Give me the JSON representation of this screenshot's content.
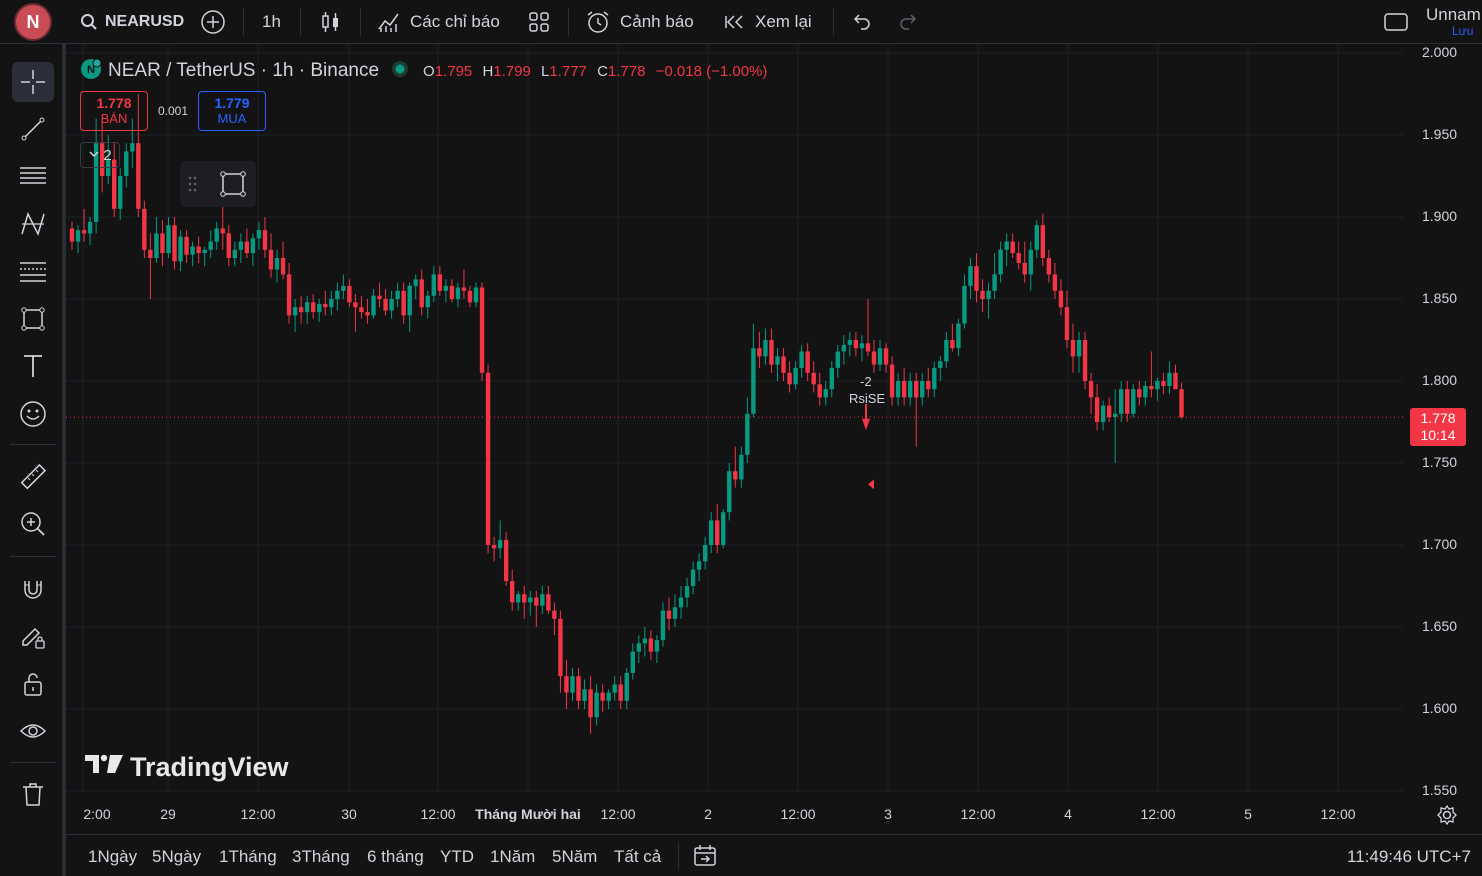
{
  "topbar": {
    "logo_letter": "N",
    "symbol": "NEARUSD",
    "interval": "1h",
    "indicators_label": "Các chỉ báo",
    "alerts_label": "Cảnh báo",
    "replay_label": "Xem lại",
    "layout_name": "Unnam",
    "save_label": "Lưu"
  },
  "legend": {
    "title": "NEAR / TetherUS · 1h · Binance",
    "o_label": "O",
    "o": "1.795",
    "h_label": "H",
    "h": "1.799",
    "l_label": "L",
    "l": "1.777",
    "c_label": "C",
    "c": "1.778",
    "change": "−0.018 (−1.00%)"
  },
  "trade": {
    "sell_price": "1.778",
    "sell_label": "BÁN",
    "spread": "0.001",
    "buy_price": "1.779",
    "buy_label": "MUA",
    "collapse_count": "2"
  },
  "price_axis": {
    "ticks": [
      "2.000",
      "1.950",
      "1.900",
      "1.850",
      "1.800",
      "1.750",
      "1.700",
      "1.650",
      "1.600",
      "1.550"
    ],
    "last_price": "1.778",
    "countdown": "10:14"
  },
  "time_axis": {
    "ticks": [
      "2:00",
      "29",
      "12:00",
      "30",
      "12:00",
      "Tháng Mười hai",
      "12:00",
      "2",
      "12:00",
      "3",
      "12:00",
      "4",
      "12:00",
      "5",
      "12:00"
    ]
  },
  "marker": {
    "count": "-2",
    "label": "RsiSE"
  },
  "watermark": "TradingView",
  "bottom": {
    "ranges": [
      "1Ngày",
      "5Ngày",
      "1Tháng",
      "3Tháng",
      "6 tháng",
      "YTD",
      "1Năm",
      "5Năm",
      "Tất cả"
    ],
    "clock": "11:49:46 UTC+7"
  },
  "colors": {
    "up": "#089981",
    "down": "#f23645",
    "background": "#131313",
    "buy": "#2962ff"
  },
  "chart_data": {
    "type": "candlestick",
    "symbol": "NEAR / TetherUS",
    "interval": "1h",
    "exchange": "Binance",
    "ylim": [
      1.55,
      2.0
    ],
    "last": 1.778,
    "candles": [
      [
        1.893,
        1.897,
        1.88,
        1.885
      ],
      [
        1.885,
        1.895,
        1.878,
        1.892
      ],
      [
        1.892,
        1.905,
        1.885,
        1.89
      ],
      [
        1.89,
        1.9,
        1.883,
        1.897
      ],
      [
        1.897,
        1.96,
        1.89,
        1.945
      ],
      [
        1.945,
        1.96,
        1.915,
        1.925
      ],
      [
        1.925,
        1.95,
        1.92,
        1.935
      ],
      [
        1.935,
        1.945,
        1.9,
        1.905
      ],
      [
        1.905,
        1.93,
        1.898,
        1.925
      ],
      [
        1.925,
        1.945,
        1.918,
        1.94
      ],
      [
        1.94,
        1.96,
        1.93,
        1.945
      ],
      [
        1.945,
        1.975,
        1.9,
        1.905
      ],
      [
        1.905,
        1.91,
        1.875,
        1.88
      ],
      [
        1.88,
        1.89,
        1.85,
        1.875
      ],
      [
        1.875,
        1.9,
        1.872,
        1.89
      ],
      [
        1.89,
        1.898,
        1.87,
        1.878
      ],
      [
        1.878,
        1.9,
        1.875,
        1.895
      ],
      [
        1.895,
        1.9,
        1.868,
        1.873
      ],
      [
        1.873,
        1.892,
        1.867,
        1.888
      ],
      [
        1.888,
        1.892,
        1.872,
        1.877
      ],
      [
        1.877,
        1.885,
        1.87,
        1.882
      ],
      [
        1.882,
        1.888,
        1.872,
        1.878
      ],
      [
        1.878,
        1.882,
        1.87,
        1.88
      ],
      [
        1.88,
        1.892,
        1.875,
        1.885
      ],
      [
        1.885,
        1.897,
        1.88,
        1.893
      ],
      [
        1.893,
        1.91,
        1.88,
        1.89
      ],
      [
        1.89,
        1.895,
        1.87,
        1.875
      ],
      [
        1.875,
        1.885,
        1.87,
        1.88
      ],
      [
        1.88,
        1.89,
        1.872,
        1.885
      ],
      [
        1.885,
        1.893,
        1.875,
        1.878
      ],
      [
        1.878,
        1.89,
        1.87,
        1.887
      ],
      [
        1.887,
        1.897,
        1.88,
        1.892
      ],
      [
        1.892,
        1.9,
        1.875,
        1.88
      ],
      [
        1.88,
        1.89,
        1.863,
        1.868
      ],
      [
        1.868,
        1.88,
        1.86,
        1.875
      ],
      [
        1.875,
        1.885,
        1.862,
        1.865
      ],
      [
        1.865,
        1.872,
        1.835,
        1.84
      ],
      [
        1.84,
        1.85,
        1.83,
        1.845
      ],
      [
        1.845,
        1.852,
        1.835,
        1.842
      ],
      [
        1.842,
        1.852,
        1.835,
        1.848
      ],
      [
        1.848,
        1.853,
        1.838,
        1.842
      ],
      [
        1.842,
        1.85,
        1.836,
        1.847
      ],
      [
        1.847,
        1.855,
        1.84,
        1.845
      ],
      [
        1.845,
        1.855,
        1.84,
        1.85
      ],
      [
        1.85,
        1.86,
        1.843,
        1.855
      ],
      [
        1.855,
        1.865,
        1.85,
        1.858
      ],
      [
        1.858,
        1.862,
        1.845,
        1.848
      ],
      [
        1.848,
        1.853,
        1.83,
        1.845
      ],
      [
        1.845,
        1.852,
        1.838,
        1.842
      ],
      [
        1.842,
        1.85,
        1.835,
        1.84
      ],
      [
        1.84,
        1.856,
        1.838,
        1.852
      ],
      [
        1.852,
        1.86,
        1.845,
        1.85
      ],
      [
        1.85,
        1.856,
        1.84,
        1.843
      ],
      [
        1.843,
        1.855,
        1.838,
        1.85
      ],
      [
        1.85,
        1.86,
        1.845,
        1.855
      ],
      [
        1.855,
        1.86,
        1.835,
        1.84
      ],
      [
        1.84,
        1.86,
        1.83,
        1.858
      ],
      [
        1.858,
        1.865,
        1.85,
        1.862
      ],
      [
        1.862,
        1.868,
        1.84,
        1.845
      ],
      [
        1.845,
        1.855,
        1.838,
        1.852
      ],
      [
        1.852,
        1.87,
        1.848,
        1.865
      ],
      [
        1.865,
        1.87,
        1.852,
        1.855
      ],
      [
        1.855,
        1.862,
        1.848,
        1.858
      ],
      [
        1.858,
        1.862,
        1.848,
        1.85
      ],
      [
        1.85,
        1.86,
        1.845,
        1.857
      ],
      [
        1.857,
        1.868,
        1.85,
        1.855
      ],
      [
        1.855,
        1.858,
        1.845,
        1.848
      ],
      [
        1.848,
        1.86,
        1.845,
        1.857
      ],
      [
        1.857,
        1.86,
        1.8,
        1.805
      ],
      [
        1.805,
        1.81,
        1.695,
        1.7
      ],
      [
        1.7,
        1.705,
        1.69,
        1.698
      ],
      [
        1.698,
        1.715,
        1.692,
        1.703
      ],
      [
        1.703,
        1.708,
        1.675,
        1.678
      ],
      [
        1.678,
        1.685,
        1.66,
        1.665
      ],
      [
        1.665,
        1.672,
        1.66,
        1.67
      ],
      [
        1.67,
        1.675,
        1.655,
        1.665
      ],
      [
        1.665,
        1.672,
        1.657,
        1.668
      ],
      [
        1.668,
        1.672,
        1.65,
        1.663
      ],
      [
        1.663,
        1.675,
        1.658,
        1.67
      ],
      [
        1.67,
        1.675,
        1.658,
        1.66
      ],
      [
        1.66,
        1.665,
        1.645,
        1.655
      ],
      [
        1.655,
        1.66,
        1.61,
        1.62
      ],
      [
        1.62,
        1.63,
        1.6,
        1.61
      ],
      [
        1.61,
        1.625,
        1.605,
        1.62
      ],
      [
        1.62,
        1.625,
        1.6,
        1.605
      ],
      [
        1.605,
        1.618,
        1.6,
        1.612
      ],
      [
        1.612,
        1.62,
        1.585,
        1.595
      ],
      [
        1.595,
        1.615,
        1.59,
        1.61
      ],
      [
        1.61,
        1.615,
        1.598,
        1.605
      ],
      [
        1.605,
        1.612,
        1.6,
        1.61
      ],
      [
        1.61,
        1.62,
        1.605,
        1.615
      ],
      [
        1.615,
        1.62,
        1.6,
        1.605
      ],
      [
        1.605,
        1.625,
        1.6,
        1.622
      ],
      [
        1.622,
        1.64,
        1.618,
        1.635
      ],
      [
        1.635,
        1.645,
        1.628,
        1.64
      ],
      [
        1.64,
        1.65,
        1.632,
        1.643
      ],
      [
        1.643,
        1.648,
        1.63,
        1.635
      ],
      [
        1.635,
        1.645,
        1.628,
        1.642
      ],
      [
        1.642,
        1.665,
        1.638,
        1.66
      ],
      [
        1.66,
        1.668,
        1.648,
        1.655
      ],
      [
        1.655,
        1.67,
        1.65,
        1.662
      ],
      [
        1.662,
        1.675,
        1.655,
        1.668
      ],
      [
        1.668,
        1.68,
        1.662,
        1.675
      ],
      [
        1.675,
        1.69,
        1.67,
        1.685
      ],
      [
        1.685,
        1.695,
        1.678,
        1.69
      ],
      [
        1.69,
        1.705,
        1.685,
        1.7
      ],
      [
        1.7,
        1.72,
        1.695,
        1.715
      ],
      [
        1.715,
        1.725,
        1.695,
        1.7
      ],
      [
        1.7,
        1.722,
        1.698,
        1.72
      ],
      [
        1.72,
        1.75,
        1.715,
        1.745
      ],
      [
        1.745,
        1.76,
        1.735,
        1.74
      ],
      [
        1.74,
        1.76,
        1.735,
        1.755
      ],
      [
        1.755,
        1.79,
        1.75,
        1.78
      ],
      [
        1.78,
        1.835,
        1.778,
        1.82
      ],
      [
        1.82,
        1.83,
        1.808,
        1.815
      ],
      [
        1.815,
        1.832,
        1.81,
        1.825
      ],
      [
        1.825,
        1.832,
        1.805,
        1.81
      ],
      [
        1.81,
        1.82,
        1.8,
        1.815
      ],
      [
        1.815,
        1.82,
        1.8,
        1.805
      ],
      [
        1.805,
        1.812,
        1.793,
        1.798
      ],
      [
        1.798,
        1.812,
        1.795,
        1.808
      ],
      [
        1.808,
        1.822,
        1.802,
        1.818
      ],
      [
        1.818,
        1.823,
        1.8,
        1.805
      ],
      [
        1.805,
        1.812,
        1.793,
        1.798
      ],
      [
        1.798,
        1.805,
        1.785,
        1.79
      ],
      [
        1.79,
        1.8,
        1.785,
        1.795
      ],
      [
        1.795,
        1.812,
        1.79,
        1.808
      ],
      [
        1.808,
        1.822,
        1.802,
        1.818
      ],
      [
        1.818,
        1.828,
        1.81,
        1.822
      ],
      [
        1.822,
        1.83,
        1.815,
        1.825
      ],
      [
        1.825,
        1.83,
        1.815,
        1.82
      ],
      [
        1.82,
        1.828,
        1.812,
        1.823
      ],
      [
        1.823,
        1.85,
        1.815,
        1.818
      ],
      [
        1.818,
        1.825,
        1.805,
        1.81
      ],
      [
        1.81,
        1.825,
        1.806,
        1.82
      ],
      [
        1.82,
        1.823,
        1.805,
        1.81
      ],
      [
        1.81,
        1.815,
        1.785,
        1.79
      ],
      [
        1.79,
        1.805,
        1.785,
        1.8
      ],
      [
        1.8,
        1.808,
        1.785,
        1.79
      ],
      [
        1.79,
        1.805,
        1.785,
        1.8
      ],
      [
        1.8,
        1.805,
        1.76,
        1.79
      ],
      [
        1.79,
        1.805,
        1.785,
        1.8
      ],
      [
        1.8,
        1.808,
        1.79,
        1.795
      ],
      [
        1.795,
        1.812,
        1.79,
        1.808
      ],
      [
        1.808,
        1.815,
        1.8,
        1.812
      ],
      [
        1.812,
        1.83,
        1.808,
        1.825
      ],
      [
        1.825,
        1.835,
        1.818,
        1.82
      ],
      [
        1.82,
        1.838,
        1.815,
        1.835
      ],
      [
        1.835,
        1.865,
        1.832,
        1.858
      ],
      [
        1.858,
        1.875,
        1.85,
        1.87
      ],
      [
        1.87,
        1.878,
        1.848,
        1.855
      ],
      [
        1.855,
        1.862,
        1.842,
        1.85
      ],
      [
        1.85,
        1.86,
        1.838,
        1.855
      ],
      [
        1.855,
        1.878,
        1.85,
        1.865
      ],
      [
        1.865,
        1.885,
        1.86,
        1.88
      ],
      [
        1.88,
        1.89,
        1.87,
        1.885
      ],
      [
        1.885,
        1.89,
        1.875,
        1.878
      ],
      [
        1.878,
        1.885,
        1.868,
        1.872
      ],
      [
        1.872,
        1.885,
        1.86,
        1.865
      ],
      [
        1.865,
        1.885,
        1.855,
        1.88
      ],
      [
        1.88,
        1.898,
        1.875,
        1.895
      ],
      [
        1.895,
        1.902,
        1.87,
        1.875
      ],
      [
        1.875,
        1.88,
        1.86,
        1.865
      ],
      [
        1.865,
        1.872,
        1.85,
        1.855
      ],
      [
        1.855,
        1.862,
        1.84,
        1.845
      ],
      [
        1.845,
        1.855,
        1.82,
        1.825
      ],
      [
        1.825,
        1.835,
        1.805,
        1.815
      ],
      [
        1.815,
        1.83,
        1.805,
        1.825
      ],
      [
        1.825,
        1.83,
        1.795,
        1.8
      ],
      [
        1.8,
        1.805,
        1.78,
        1.79
      ],
      [
        1.79,
        1.798,
        1.77,
        1.775
      ],
      [
        1.775,
        1.788,
        1.77,
        1.785
      ],
      [
        1.785,
        1.79,
        1.775,
        1.778
      ],
      [
        1.778,
        1.795,
        1.75,
        1.78
      ],
      [
        1.78,
        1.8,
        1.775,
        1.795
      ],
      [
        1.795,
        1.8,
        1.775,
        1.78
      ],
      [
        1.78,
        1.798,
        1.778,
        1.795
      ],
      [
        1.795,
        1.8,
        1.785,
        1.79
      ],
      [
        1.79,
        1.8,
        1.785,
        1.797
      ],
      [
        1.797,
        1.818,
        1.79,
        1.795
      ],
      [
        1.795,
        1.802,
        1.788,
        1.8
      ],
      [
        1.8,
        1.805,
        1.792,
        1.797
      ],
      [
        1.797,
        1.812,
        1.792,
        1.805
      ],
      [
        1.805,
        1.81,
        1.795,
        1.795
      ],
      [
        1.795,
        1.799,
        1.777,
        1.778
      ]
    ]
  }
}
